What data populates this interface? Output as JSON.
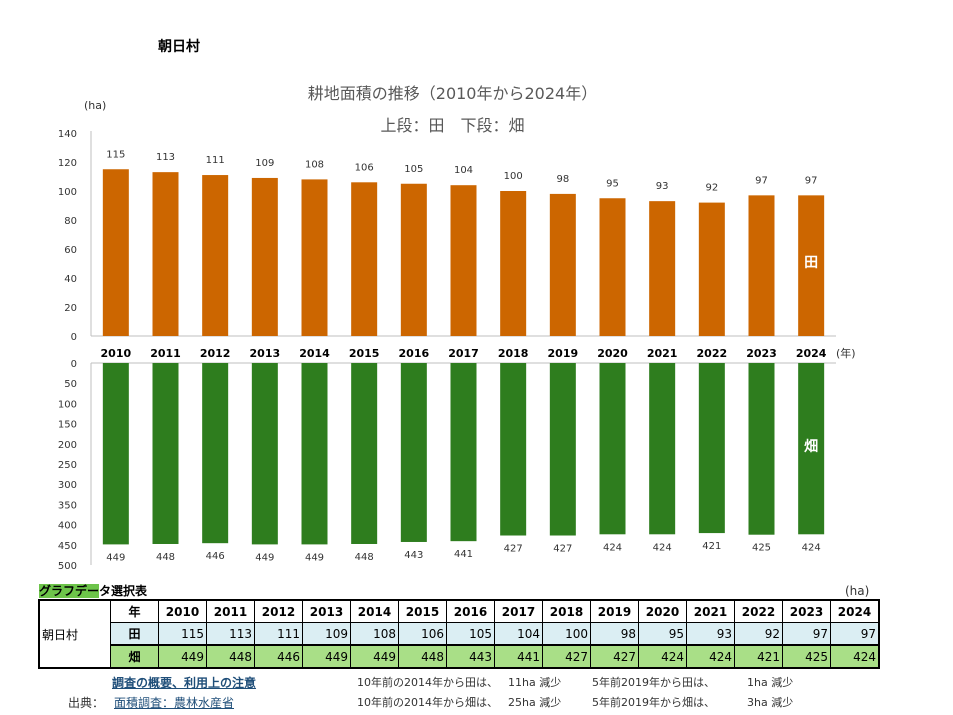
{
  "village_title": "朝日村",
  "chart_title": "耕地面積の推移（2010年から2024年）",
  "chart_subtitle": "上段：田　下段：畑",
  "colors": {
    "rice": "#cc6600",
    "field": "#2e7d1e",
    "table_rice_bg": "#dbeef3",
    "table_field_bg": "#a9df87",
    "link": "#1f4e79"
  },
  "chart_data": [
    {
      "type": "bar",
      "name": "田",
      "unit_label": "(ha)",
      "categories": [
        "2010",
        "2011",
        "2012",
        "2013",
        "2014",
        "2015",
        "2016",
        "2017",
        "2018",
        "2019",
        "2020",
        "2021",
        "2022",
        "2023",
        "2024"
      ],
      "values": [
        115,
        113,
        111,
        109,
        108,
        106,
        105,
        104,
        100,
        98,
        95,
        93,
        92,
        97,
        97
      ],
      "ylim": [
        0,
        140
      ],
      "yticks": [
        "140",
        "120",
        "100",
        "80",
        "60",
        "40",
        "20",
        "0"
      ],
      "x_unit_label": "(年)",
      "inner_label": "田"
    },
    {
      "type": "bar",
      "name": "畑",
      "categories": [
        "2010",
        "2011",
        "2012",
        "2013",
        "2014",
        "2015",
        "2016",
        "2017",
        "2018",
        "2019",
        "2020",
        "2021",
        "2022",
        "2023",
        "2024"
      ],
      "values": [
        449,
        448,
        446,
        449,
        449,
        448,
        443,
        441,
        427,
        427,
        424,
        424,
        421,
        425,
        424
      ],
      "ylim": [
        0,
        500
      ],
      "inverted": true,
      "yticks": [
        "0",
        "50",
        "100",
        "150",
        "200",
        "250",
        "300",
        "350",
        "400",
        "450",
        "500"
      ],
      "inner_label": "畑"
    }
  ],
  "table": {
    "caption_highlight": "グラフデー",
    "caption_rest": "タ選択表",
    "unit": "(ha)",
    "year_header": "年",
    "village": "朝日村",
    "years": [
      "2010",
      "2011",
      "2012",
      "2013",
      "2014",
      "2015",
      "2016",
      "2017",
      "2018",
      "2019",
      "2020",
      "2021",
      "2022",
      "2023",
      "2024"
    ],
    "rice_label": "田",
    "rice": [
      "115",
      "113",
      "111",
      "109",
      "108",
      "106",
      "105",
      "104",
      "100",
      "98",
      "95",
      "93",
      "92",
      "97",
      "97"
    ],
    "field_label": "畑",
    "field": [
      "449",
      "448",
      "446",
      "449",
      "449",
      "448",
      "443",
      "441",
      "427",
      "427",
      "424",
      "424",
      "421",
      "425",
      "424"
    ]
  },
  "footer": {
    "notes_link": "調査の概要、利用上の注意",
    "source_label": "出典：",
    "source_link": "面積調査：農林水産省",
    "stats": [
      {
        "text": "10年前の2014年から田は、",
        "value": "11ha 減少"
      },
      {
        "text": "5年前2019年から田は、",
        "value": "1ha 減少"
      },
      {
        "text": "10年前の2014年から畑は、",
        "value": "25ha 減少"
      },
      {
        "text": "5年前2019年から畑は、",
        "value": "3ha 減少"
      }
    ]
  }
}
